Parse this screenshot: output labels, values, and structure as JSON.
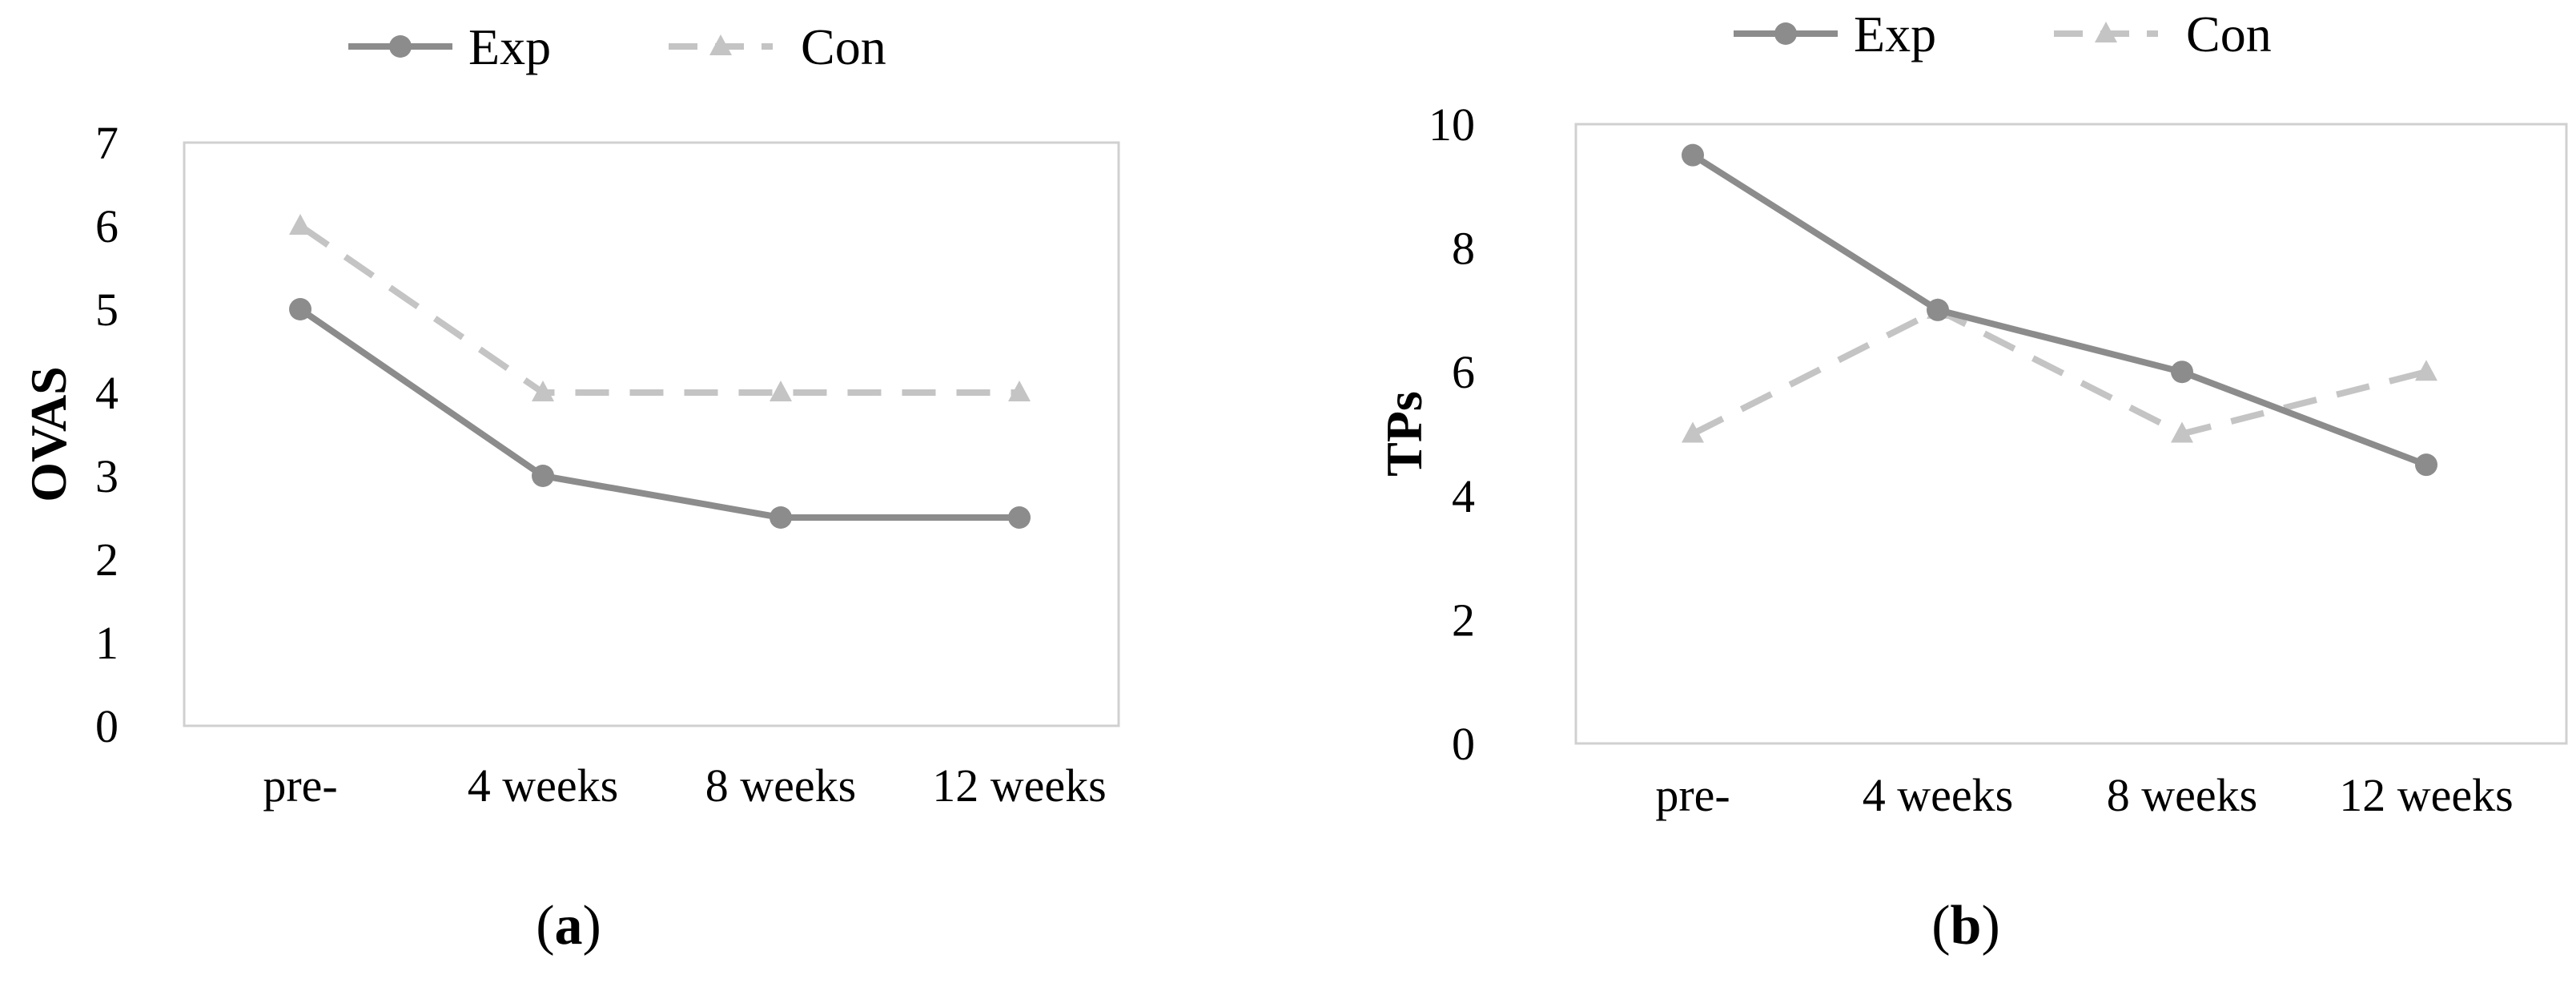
{
  "colors": {
    "exp": "#8c8c8c",
    "con": "#c4c4c4",
    "plot_border": "#d0d0d0",
    "text": "#000000"
  },
  "chart_data": [
    {
      "type": "line",
      "panel_label": "a",
      "categories": [
        "pre-",
        "4 weeks",
        "8 weeks",
        "12 weeks"
      ],
      "series": [
        {
          "name": "Exp",
          "values": [
            5,
            3,
            2.5,
            2.5
          ],
          "style": "solid",
          "marker": "circle"
        },
        {
          "name": "Con",
          "values": [
            6,
            4,
            4,
            4
          ],
          "style": "dashed",
          "marker": "triangle"
        }
      ],
      "ylabel": "OVAS",
      "xlabel": "",
      "ylim": [
        0,
        7
      ],
      "yticks": [
        "0",
        "1",
        "2",
        "3",
        "4",
        "5",
        "6",
        "7"
      ],
      "grid": false,
      "legend": "top"
    },
    {
      "type": "line",
      "panel_label": "b",
      "categories": [
        "pre-",
        "4 weeks",
        "8 weeks",
        "12 weeks"
      ],
      "series": [
        {
          "name": "Exp",
          "values": [
            9.5,
            7,
            6,
            4.5
          ],
          "style": "solid",
          "marker": "circle"
        },
        {
          "name": "Con",
          "values": [
            5,
            7,
            5,
            6
          ],
          "style": "dashed",
          "marker": "triangle"
        }
      ],
      "ylabel": "TPs",
      "xlabel": "",
      "ylim": [
        0,
        10
      ],
      "yticks": [
        "0",
        "2",
        "4",
        "6",
        "8",
        "10"
      ],
      "grid": false,
      "legend": "top"
    }
  ]
}
